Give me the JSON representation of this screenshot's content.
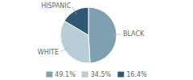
{
  "chart_data": {
    "type": "pie",
    "categories": [
      "BLACK",
      "WHITE",
      "HISPANIC"
    ],
    "values": [
      49.1,
      34.5,
      16.4
    ],
    "value_labels": [
      "49.1%",
      "34.5%",
      "16.4%"
    ],
    "colors": [
      "#7fa0b0",
      "#b8cdd6",
      "#2d5a72"
    ],
    "legend": "bottom"
  }
}
